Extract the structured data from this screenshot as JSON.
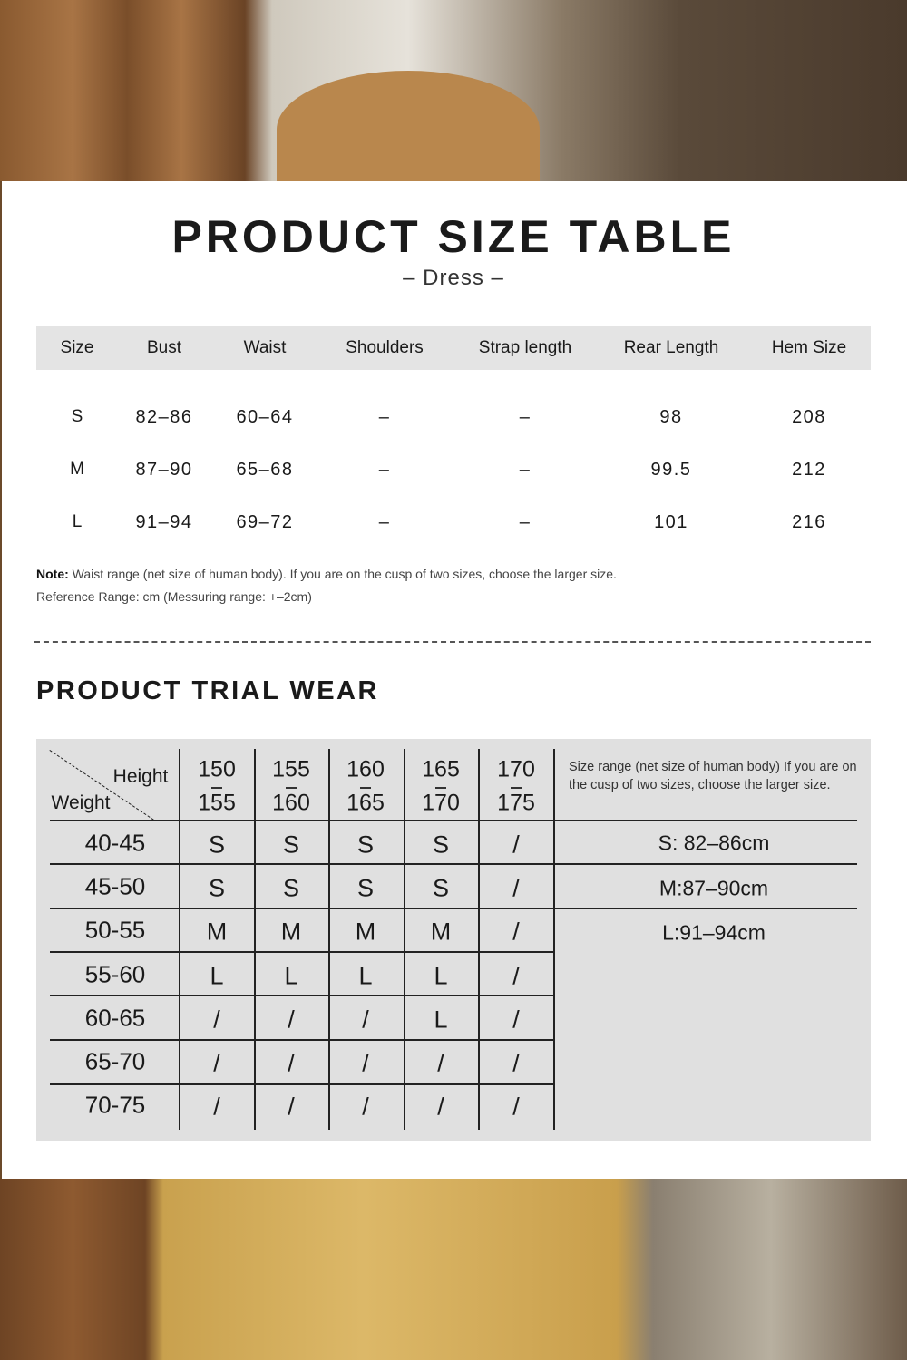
{
  "title": "PRODUCT SIZE TABLE",
  "subtitle": "– Dress –",
  "size_table": {
    "headers": [
      "Size",
      "Bust",
      "Waist",
      "Shoulders",
      "Strap length",
      "Rear Length",
      "Hem Size"
    ],
    "rows": [
      [
        "S",
        "82–86",
        "60–64",
        "–",
        "–",
        "98",
        "208"
      ],
      [
        "M",
        "87–90",
        "65–68",
        "–",
        "–",
        "99.5",
        "212"
      ],
      [
        "L",
        "91–94",
        "69–72",
        "–",
        "–",
        "101",
        "216"
      ]
    ]
  },
  "note_label": "Note:",
  "note_text": " Waist range (net size of human body). If you are on the cusp of two sizes, choose the larger size.",
  "reference": "Reference Range: cm (Messuring range: +–2cm)",
  "trial_title": "PRODUCT TRIAL WEAR",
  "trial": {
    "height_label": "Height",
    "weight_label": "Weight",
    "heights": [
      [
        "150",
        "155"
      ],
      [
        "155",
        "160"
      ],
      [
        "160",
        "165"
      ],
      [
        "165",
        "170"
      ],
      [
        "170",
        "175"
      ]
    ],
    "weights": [
      "40-45",
      "45-50",
      "50-55",
      "55-60",
      "60-65",
      "65-70",
      "70-75"
    ],
    "grid": [
      [
        "S",
        "S",
        "S",
        "S",
        "/"
      ],
      [
        "S",
        "S",
        "S",
        "S",
        "/"
      ],
      [
        "M",
        "M",
        "M",
        "M",
        "/"
      ],
      [
        "L",
        "L",
        "L",
        "L",
        "/"
      ],
      [
        "/",
        "/",
        "/",
        "L",
        "/"
      ],
      [
        "/",
        "/",
        "/",
        "/",
        "/"
      ],
      [
        "/",
        "/",
        "/",
        "/",
        "/"
      ]
    ],
    "size_note": "Size range (net size of human body) If you are on the cusp of two sizes, choose the larger size.",
    "ranges": [
      "S: 82–86cm",
      "M:87–90cm",
      "L:91–94cm"
    ]
  }
}
